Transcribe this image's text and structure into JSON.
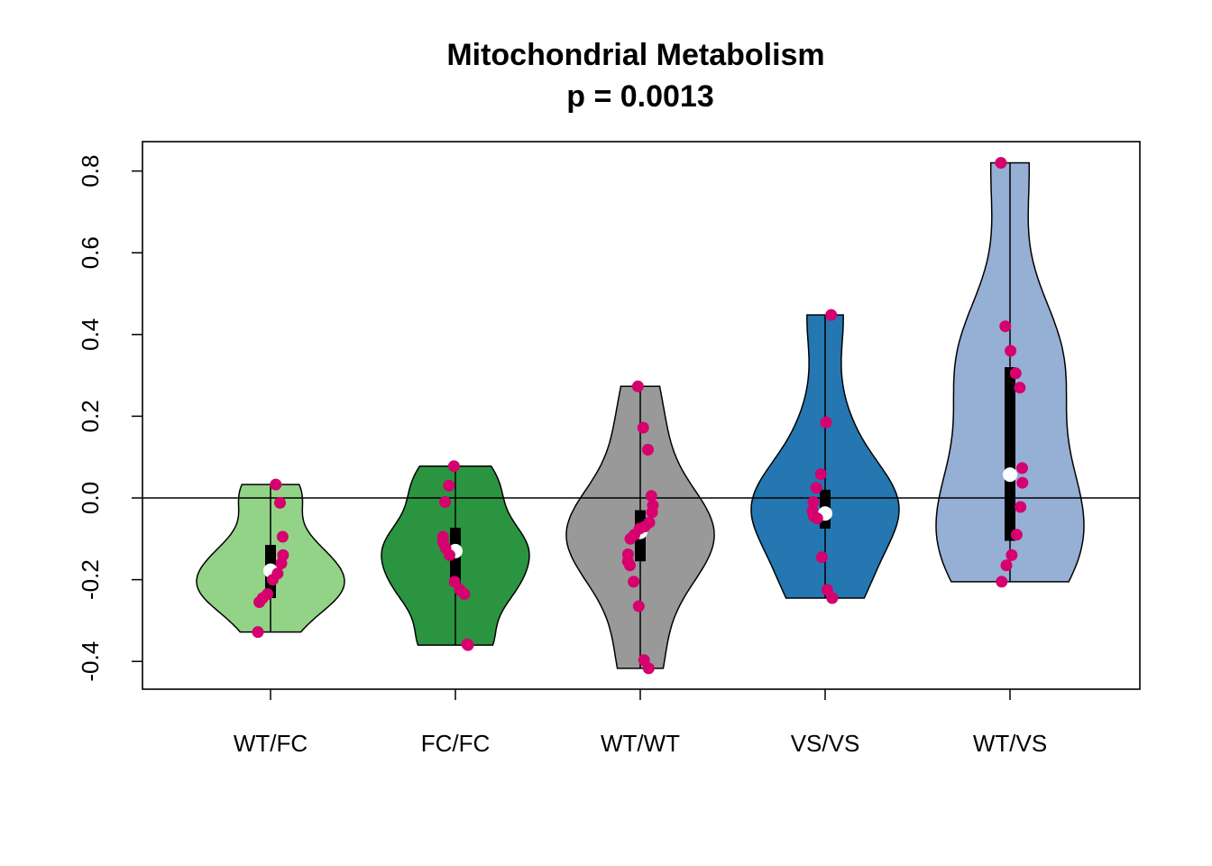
{
  "chart_data": {
    "type": "violin",
    "title": "Mitochondrial Metabolism",
    "subtitle": "p = 0.0013",
    "xlabel": "",
    "ylabel": "",
    "ylim": [
      -0.465,
      0.87
    ],
    "yticks": [
      -0.4,
      -0.2,
      0.0,
      0.2,
      0.4,
      0.6,
      0.8
    ],
    "ytick_labels": [
      "-0.4",
      "-0.2",
      "0.0",
      "0.2",
      "0.4",
      "0.6",
      "0.8"
    ],
    "reference_line_y": 0.0,
    "grid": false,
    "legend": "none",
    "point_color": "#D6006E",
    "median_color": "#FFFFFF",
    "groups": [
      {
        "label": "WT/FC",
        "color": "#93D387",
        "min": -0.328,
        "max": 0.033,
        "q1": -0.245,
        "median": -0.178,
        "q3": -0.115,
        "points": [
          0.033,
          -0.012,
          -0.095,
          -0.14,
          -0.16,
          -0.185,
          -0.2,
          -0.235,
          -0.245,
          -0.255,
          -0.328
        ]
      },
      {
        "label": "FC/FC",
        "color": "#2B9440",
        "min": -0.36,
        "max": 0.078,
        "q1": -0.21,
        "median": -0.13,
        "q3": -0.073,
        "points": [
          0.078,
          0.03,
          -0.01,
          -0.095,
          -0.108,
          -0.122,
          -0.14,
          -0.205,
          -0.225,
          -0.235,
          -0.358,
          -0.36
        ]
      },
      {
        "label": "WT/WT",
        "color": "#999999",
        "min": -0.417,
        "max": 0.273,
        "q1": -0.155,
        "median": -0.083,
        "q3": -0.03,
        "points": [
          0.273,
          0.172,
          0.118,
          0.005,
          -0.018,
          -0.035,
          -0.06,
          -0.07,
          -0.075,
          -0.09,
          -0.1,
          -0.138,
          -0.155,
          -0.165,
          -0.205,
          -0.265,
          -0.397,
          -0.417
        ]
      },
      {
        "label": "VS/VS",
        "color": "#2477B0",
        "min": -0.245,
        "max": 0.448,
        "q1": -0.075,
        "median": -0.038,
        "q3": 0.02,
        "points": [
          0.448,
          0.185,
          0.058,
          0.025,
          -0.01,
          -0.032,
          -0.045,
          -0.05,
          -0.145,
          -0.225,
          -0.245
        ]
      },
      {
        "label": "WT/VS",
        "color": "#96AFD4",
        "min": -0.205,
        "max": 0.82,
        "q1": -0.105,
        "median": 0.057,
        "q3": 0.32,
        "points": [
          0.82,
          0.42,
          0.36,
          0.305,
          0.27,
          0.073,
          0.037,
          -0.022,
          -0.09,
          -0.14,
          -0.165,
          -0.205
        ]
      }
    ]
  }
}
